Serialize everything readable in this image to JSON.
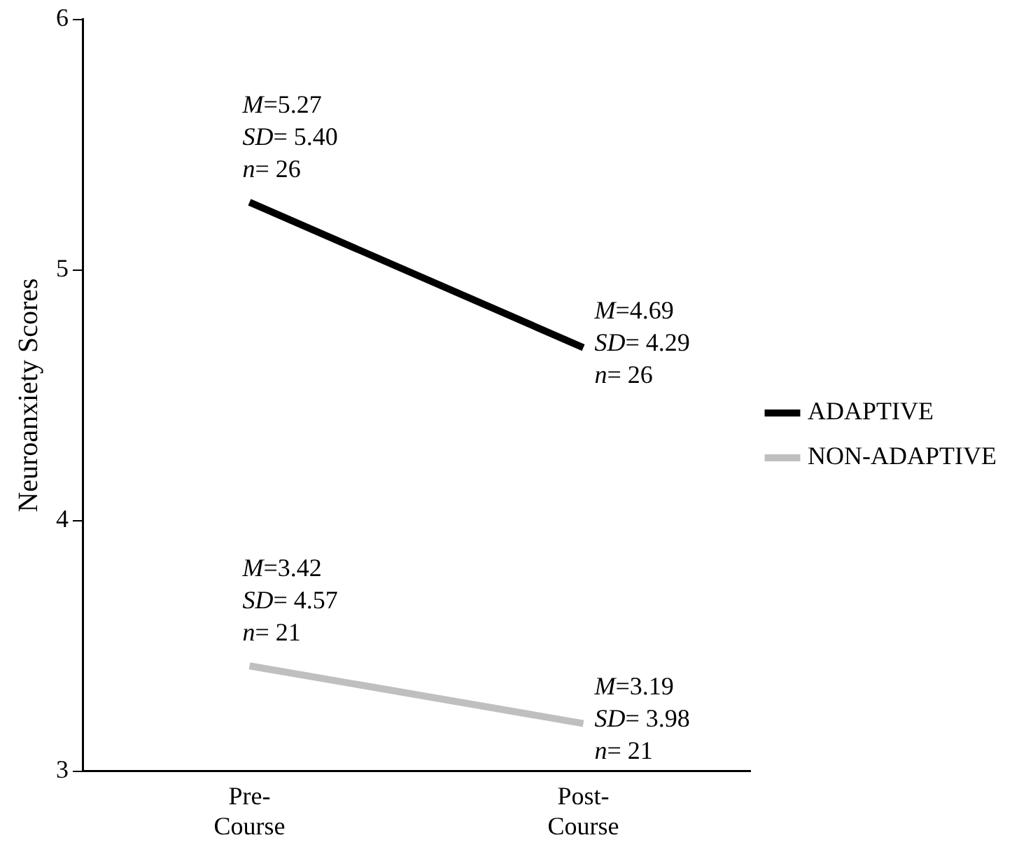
{
  "chart_data": {
    "type": "line",
    "ylabel": "Neuroanxiety Scores",
    "categories": [
      "Pre-\nCourse",
      "Post-\nCourse"
    ],
    "series": [
      {
        "name": "ADAPTIVE",
        "color": "#000000",
        "values": [
          5.27,
          4.69
        ]
      },
      {
        "name": "NON-ADAPTIVE",
        "color": "#bfbfbf",
        "values": [
          3.42,
          3.19
        ]
      }
    ],
    "ylim": [
      3,
      6
    ],
    "yticks": [
      3,
      4,
      5,
      6
    ],
    "grid": false,
    "legend": "right",
    "marker": "none",
    "annotations": [
      {
        "text": "M=5.27\nSD= 5.40\nn= 26",
        "x": "Pre-\nCourse",
        "y": 5.27
      },
      {
        "text": "M=4.69\nSD= 4.29\nn= 26",
        "x": "Post-\nCourse",
        "y": 4.69
      },
      {
        "text": "M=3.42\nSD= 4.57\nn= 21",
        "x": "Pre-\nCourse",
        "y": 3.42
      },
      {
        "text": "M=3.19\nSD= 3.98\nn= 21",
        "x": "Post-\nCourse",
        "y": 3.19
      }
    ]
  }
}
